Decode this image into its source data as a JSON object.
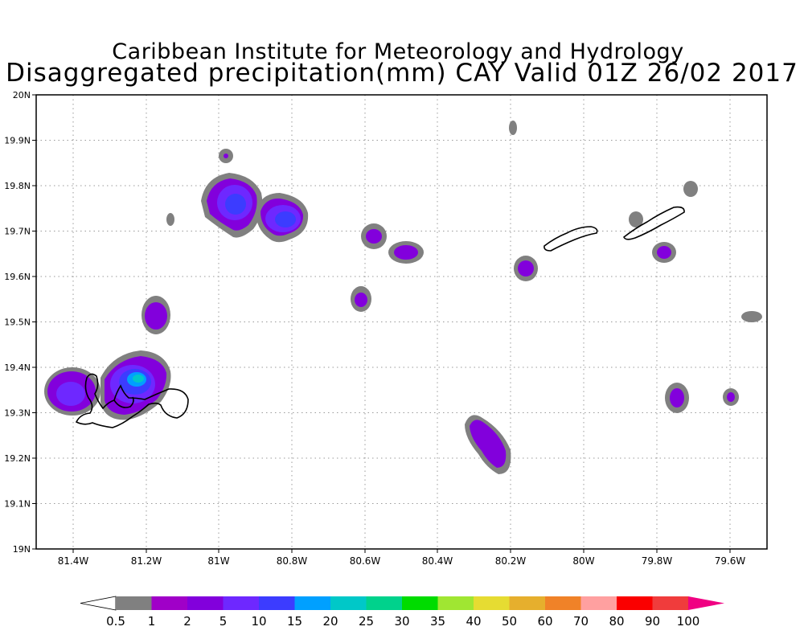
{
  "title_line1": "Caribbean Institute for Meteorology and Hydrology",
  "title_line2": "Disaggregated precipitation(mm) CAY Valid 01Z 26/02 2017",
  "x_ticks": [
    "81.4W",
    "81.2W",
    "81W",
    "80.8W",
    "80.6W",
    "80.4W",
    "80.2W",
    "80W",
    "79.8W",
    "79.6W"
  ],
  "y_ticks": [
    "20N",
    "19.9N",
    "19.8N",
    "19.7N",
    "19.6N",
    "19.5N",
    "19.4N",
    "19.3N",
    "19.2N",
    "19.1N",
    "19N"
  ],
  "legend": {
    "labels": [
      "0.5",
      "1",
      "2",
      "5",
      "10",
      "15",
      "20",
      "25",
      "30",
      "35",
      "40",
      "50",
      "60",
      "70",
      "80",
      "90",
      "100"
    ],
    "colors": [
      "#ffffff",
      "#808080",
      "#a000c8",
      "#8200dc",
      "#6e28ff",
      "#3c3cff",
      "#00a0ff",
      "#00c8c8",
      "#00d28c",
      "#00dc00",
      "#a0e632",
      "#e6dc32",
      "#e6af2d",
      "#f08228",
      "#ffa0a0",
      "#fa0000",
      "#f03c3c",
      "#f00082"
    ]
  },
  "colors": {
    "gray": "#808080",
    "magenta_purple": "#a000c8",
    "purple": "#8200dc",
    "blue_violet": "#6e28ff",
    "blue": "#3c3cff",
    "light_blue": "#00a0ff",
    "teal": "#00c8c8"
  }
}
